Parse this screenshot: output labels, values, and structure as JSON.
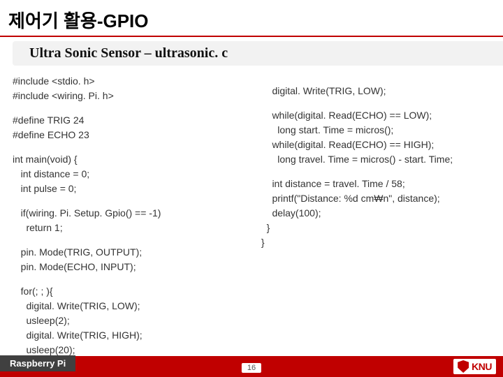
{
  "title": "제어기 활용-GPIO",
  "subtitle": "Ultra Sonic Sensor – ultrasonic. c",
  "code_left": [
    "#include <stdio. h>",
    "#include <wiring. Pi. h>",
    "",
    "#define TRIG 24",
    "#define ECHO 23",
    "",
    "int main(void) {",
    "   int distance = 0;",
    "   int pulse = 0;",
    "",
    "   if(wiring. Pi. Setup. Gpio() == -1)",
    "     return 1;",
    "",
    "   pin. Mode(TRIG, OUTPUT);",
    "   pin. Mode(ECHO, INPUT);",
    "",
    "   for(; ; ){",
    "     digital. Write(TRIG, LOW);",
    "     usleep(2);",
    "     digital. Write(TRIG, HIGH);",
    "     usleep(20);"
  ],
  "code_right": [
    "",
    "     digital. Write(TRIG, LOW);",
    "",
    "     while(digital. Read(ECHO) == LOW);",
    "       long start. Time = micros();",
    "     while(digital. Read(ECHO) == HIGH);",
    "       long travel. Time = micros() - start. Time;",
    "",
    "     int distance = travel. Time / 58;",
    "     printf(\"Distance: %d cm₩n\", distance);",
    "     delay(100);",
    "   }",
    " }"
  ],
  "footer_label": "Raspberry Pi",
  "page_number": "16",
  "logo_text": "KNU",
  "colors": {
    "accent": "#c00000",
    "footer_label_bg": "#404040",
    "subtitle_bg": "#f2f2f2",
    "text": "#333333"
  }
}
